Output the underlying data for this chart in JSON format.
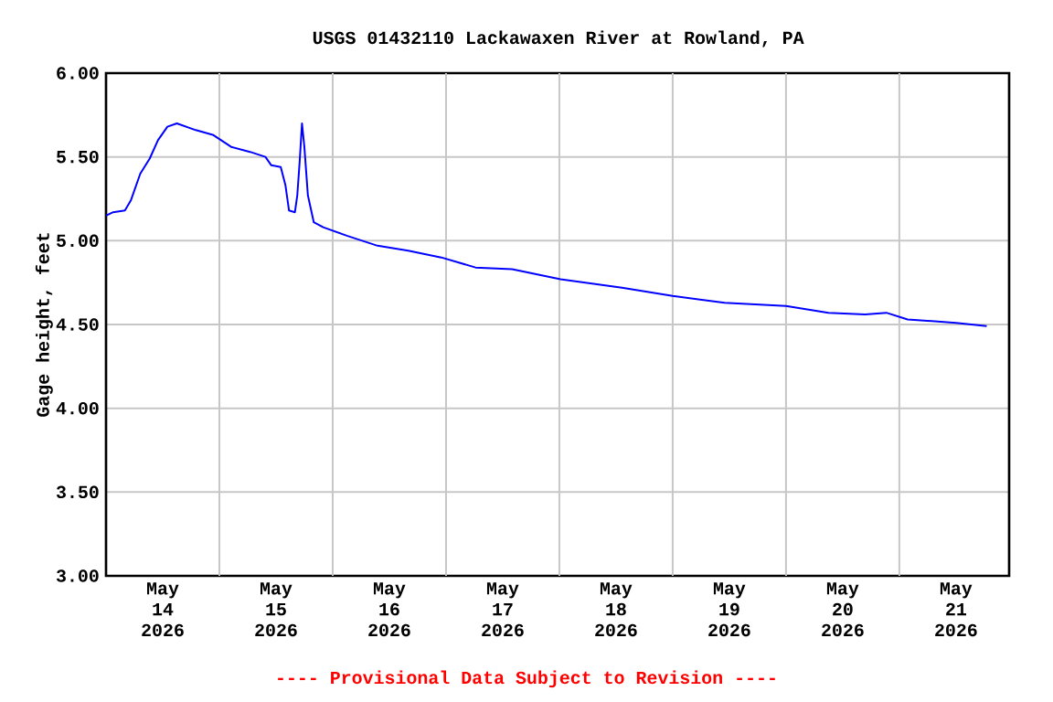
{
  "chart_data": {
    "type": "line",
    "title": "USGS 01432110 Lackawaxen River at Rowland, PA",
    "ylabel": "Gage height, feet",
    "annotations": [
      "---- Provisional Data Subject to Revision ----"
    ],
    "x": [
      "2026-05-14T00:00",
      "2026-05-14T01:30",
      "2026-05-14T04:00",
      "2026-05-14T05:15",
      "2026-05-14T07:15",
      "2026-05-14T09:15",
      "2026-05-14T11:00",
      "2026-05-14T13:00",
      "2026-05-14T15:00",
      "2026-05-14T17:00",
      "2026-05-14T19:00",
      "2026-05-14T22:45",
      "2026-05-15T02:30",
      "2026-05-15T06:30",
      "2026-05-15T09:45",
      "2026-05-15T11:00",
      "2026-05-15T13:00",
      "2026-05-15T14:00",
      "2026-05-15T14:45",
      "2026-05-15T16:00",
      "2026-05-15T16:30",
      "2026-05-15T17:00",
      "2026-05-15T17:30",
      "2026-05-15T18:00",
      "2026-05-15T18:45",
      "2026-05-15T20:00",
      "2026-05-15T22:00",
      "2026-05-16T03:00",
      "2026-05-16T09:30",
      "2026-05-16T16:00",
      "2026-05-16T23:00",
      "2026-05-17T06:15",
      "2026-05-17T14:00",
      "2026-05-18T00:15",
      "2026-05-18T13:15",
      "2026-05-19T00:00",
      "2026-05-19T11:00",
      "2026-05-20T00:00",
      "2026-05-20T09:00",
      "2026-05-20T16:45",
      "2026-05-20T21:15",
      "2026-05-21T01:45",
      "2026-05-21T12:00",
      "2026-05-21T18:30"
    ],
    "series": [
      {
        "color": "#0000ff",
        "values": [
          5.15,
          5.17,
          5.18,
          5.24,
          5.4,
          5.49,
          5.6,
          5.68,
          5.7,
          5.68,
          5.66,
          5.63,
          5.56,
          5.53,
          5.5,
          5.45,
          5.44,
          5.33,
          5.18,
          5.17,
          5.27,
          5.47,
          5.7,
          5.56,
          5.27,
          5.11,
          5.08,
          5.03,
          4.97,
          4.94,
          4.9,
          4.84,
          4.83,
          4.77,
          4.72,
          4.67,
          4.63,
          4.61,
          4.57,
          4.56,
          4.57,
          4.53,
          4.51,
          4.49
        ]
      }
    ],
    "xlim": [
      "2026-05-14T00:00",
      "2026-05-21T23:15"
    ],
    "xticks": [
      {
        "value": "2026-05-14T12:00",
        "label": "May 14 2026"
      },
      {
        "value": "2026-05-15T00:00",
        "label": null
      },
      {
        "value": "2026-05-15T12:00",
        "label": "May 15 2026"
      },
      {
        "value": "2026-05-16T00:00",
        "label": null
      },
      {
        "value": "2026-05-16T12:00",
        "label": "May 16 2026"
      },
      {
        "value": "2026-05-17T00:00",
        "label": null
      },
      {
        "value": "2026-05-17T12:00",
        "label": "May 17 2026"
      },
      {
        "value": "2026-05-18T00:00",
        "label": null
      },
      {
        "value": "2026-05-18T12:00",
        "label": "May 18 2026"
      },
      {
        "value": "2026-05-19T00:00",
        "label": null
      },
      {
        "value": "2026-05-19T12:00",
        "label": "May 19 2026"
      },
      {
        "value": "2026-05-20T00:00",
        "label": null
      },
      {
        "value": "2026-05-20T12:00",
        "label": "May 20 2026"
      },
      {
        "value": "2026-05-21T00:00",
        "label": null
      },
      {
        "value": "2026-05-21T12:00",
        "label": "May 21 2026"
      }
    ],
    "ylim": [
      3,
      6
    ],
    "yticks": [
      {
        "value": 3,
        "label": "3.00"
      },
      {
        "value": 3.5,
        "label": "3.50"
      },
      {
        "value": 4,
        "label": "4.00"
      },
      {
        "value": 4.5,
        "label": "4.50"
      },
      {
        "value": 5,
        "label": "5.00"
      },
      {
        "value": 5.5,
        "label": "5.50"
      },
      {
        "value": 6,
        "label": "6.00"
      }
    ],
    "grid": true,
    "marker": "none",
    "line_style": "solid"
  }
}
